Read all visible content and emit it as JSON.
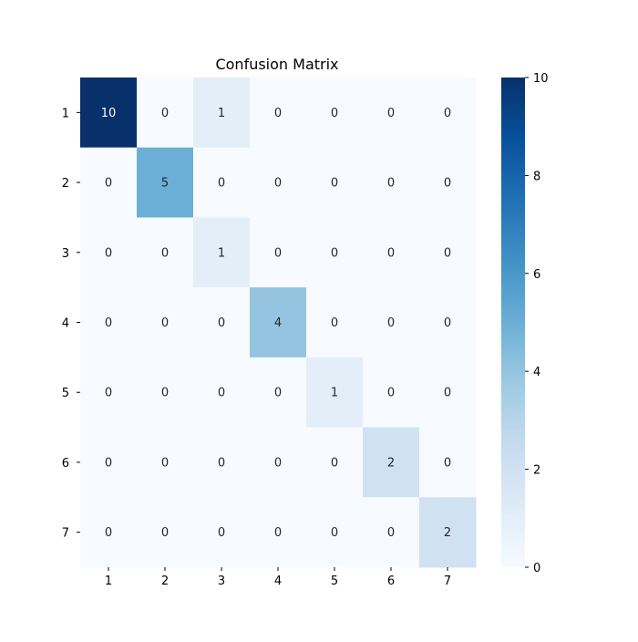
{
  "chart_data": {
    "type": "heatmap",
    "title": "Confusion Matrix",
    "xlabel": "",
    "ylabel": "",
    "x_categories": [
      "1",
      "2",
      "3",
      "4",
      "5",
      "6",
      "7"
    ],
    "y_categories": [
      "1",
      "2",
      "3",
      "4",
      "5",
      "6",
      "7"
    ],
    "values": [
      [
        10,
        0,
        1,
        0,
        0,
        0,
        0
      ],
      [
        0,
        5,
        0,
        0,
        0,
        0,
        0
      ],
      [
        0,
        0,
        1,
        0,
        0,
        0,
        0
      ],
      [
        0,
        0,
        0,
        4,
        0,
        0,
        0
      ],
      [
        0,
        0,
        0,
        0,
        1,
        0,
        0
      ],
      [
        0,
        0,
        0,
        0,
        0,
        2,
        0
      ],
      [
        0,
        0,
        0,
        0,
        0,
        0,
        2
      ]
    ],
    "colormap": "Blues",
    "vmin": 0,
    "vmax": 10,
    "colorbar_ticks": [
      0,
      2,
      4,
      6,
      8,
      10
    ],
    "annotated": true,
    "grid": false
  }
}
